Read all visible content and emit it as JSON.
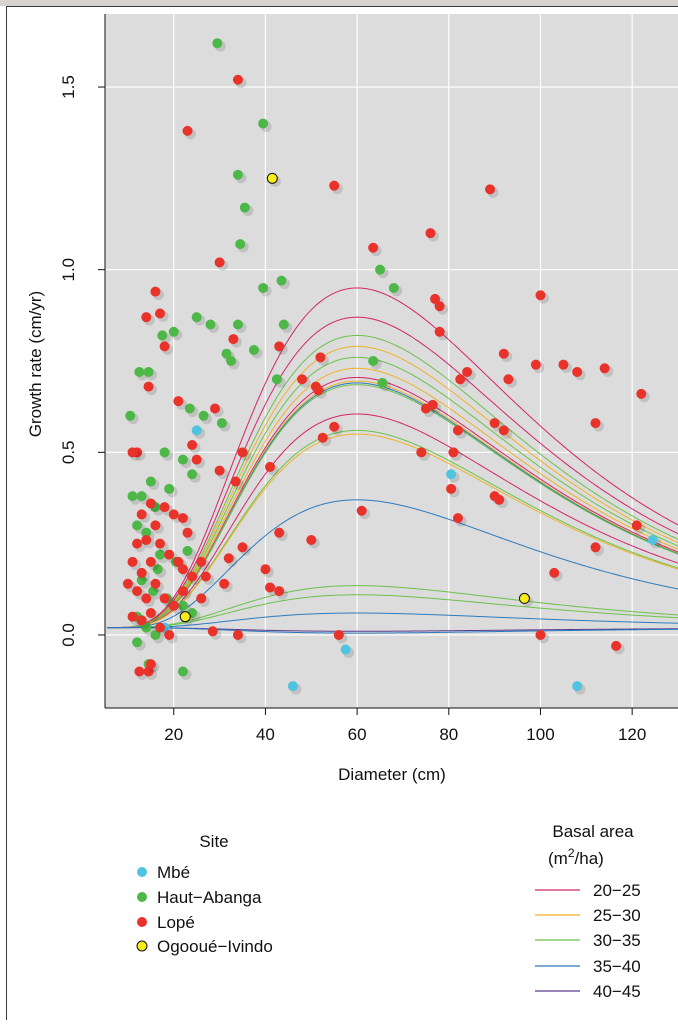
{
  "chart_data": {
    "type": "scatter",
    "xlabel": "Diameter (cm)",
    "ylabel": "Growth rate (cm/yr)",
    "xlim": [
      5,
      130
    ],
    "ylim": [
      -0.2,
      1.7
    ],
    "x_ticks": [
      20,
      40,
      60,
      80,
      100,
      120
    ],
    "y_ticks": [
      0.0,
      0.5,
      1.0,
      1.5
    ],
    "x_tick_labels": [
      "20",
      "40",
      "60",
      "80",
      "100",
      "120"
    ],
    "y_tick_labels": [
      "0.0",
      "0.5",
      "1.0",
      "1.5"
    ],
    "grid": true,
    "colors": {
      "Mbé": "#4fc3e0",
      "Haut-Abanga": "#4db848",
      "Lopé": "#e8322a",
      "Ogooué-Ivindo": "#f5ec1a",
      "20-25": "#d6246b",
      "25-30": "#f0b22a",
      "30-35": "#6cc24a",
      "35-40": "#2b7bc0",
      "40-45": "#5a3a8c",
      "panel": "#dcdcdc"
    },
    "legend_site": {
      "title": "Site",
      "entries": [
        "Mbé",
        "Haut−Abanga",
        "Lopé",
        "Ogooué−Ivindo"
      ],
      "placement": "bottom-left"
    },
    "legend_basal": {
      "title": "Basal area",
      "title_unit_prefix": "(m",
      "title_unit_sup": "2",
      "title_unit_suffix": "/ha)",
      "entries": [
        "20−25",
        "25−30",
        "30−35",
        "35−40",
        "40−45"
      ],
      "placement": "bottom-right"
    },
    "points": {
      "Mbé": [
        [
          25,
          0.56
        ],
        [
          46,
          -0.14
        ],
        [
          57.5,
          -0.04
        ],
        [
          80.5,
          0.44
        ],
        [
          108,
          -0.14
        ],
        [
          124.5,
          0.26
        ],
        [
          18,
          0.02
        ]
      ],
      "Haut-Abanga": [
        [
          29.5,
          1.62
        ],
        [
          39.5,
          1.4
        ],
        [
          34,
          1.26
        ],
        [
          35.5,
          1.17
        ],
        [
          34.5,
          1.07
        ],
        [
          43.5,
          0.97
        ],
        [
          39.5,
          0.95
        ],
        [
          65,
          1.0
        ],
        [
          68,
          0.95
        ],
        [
          25,
          0.87
        ],
        [
          28,
          0.85
        ],
        [
          34,
          0.85
        ],
        [
          44,
          0.85
        ],
        [
          20,
          0.83
        ],
        [
          17.5,
          0.82
        ],
        [
          37.5,
          0.78
        ],
        [
          31.5,
          0.77
        ],
        [
          32.5,
          0.75
        ],
        [
          12.5,
          0.72
        ],
        [
          14.5,
          0.72
        ],
        [
          42.5,
          0.7
        ],
        [
          63.5,
          0.75
        ],
        [
          65.5,
          0.69
        ],
        [
          26.5,
          0.6
        ],
        [
          30.5,
          0.58
        ],
        [
          10.5,
          0.6
        ],
        [
          18,
          0.5
        ],
        [
          22,
          0.48
        ],
        [
          24,
          0.44
        ],
        [
          15,
          0.42
        ],
        [
          19,
          0.4
        ],
        [
          11,
          0.38
        ],
        [
          13,
          0.38
        ],
        [
          16,
          0.35
        ],
        [
          12,
          0.3
        ],
        [
          14,
          0.28
        ],
        [
          17,
          0.22
        ],
        [
          20.5,
          0.2
        ],
        [
          13,
          0.15
        ],
        [
          15.5,
          0.12
        ],
        [
          18.5,
          0.1
        ],
        [
          12,
          0.05
        ],
        [
          14,
          0.02
        ],
        [
          16,
          0.0
        ],
        [
          22,
          0.08
        ],
        [
          24,
          0.06
        ],
        [
          12,
          -0.02
        ],
        [
          14.5,
          -0.08
        ],
        [
          22,
          -0.1
        ],
        [
          23.5,
          0.62
        ],
        [
          23,
          0.23
        ],
        [
          16.5,
          0.18
        ]
      ],
      "Lopé": [
        [
          34,
          1.52
        ],
        [
          23,
          1.38
        ],
        [
          55,
          1.23
        ],
        [
          76,
          1.1
        ],
        [
          89,
          1.22
        ],
        [
          63.5,
          1.06
        ],
        [
          30,
          1.02
        ],
        [
          16,
          0.94
        ],
        [
          77,
          0.92
        ],
        [
          78,
          0.9
        ],
        [
          100,
          0.93
        ],
        [
          17,
          0.88
        ],
        [
          14,
          0.87
        ],
        [
          33,
          0.81
        ],
        [
          43,
          0.79
        ],
        [
          18,
          0.79
        ],
        [
          78,
          0.83
        ],
        [
          52,
          0.76
        ],
        [
          92,
          0.77
        ],
        [
          99,
          0.74
        ],
        [
          105,
          0.74
        ],
        [
          108,
          0.72
        ],
        [
          114,
          0.73
        ],
        [
          122,
          0.66
        ],
        [
          82.5,
          0.7
        ],
        [
          84,
          0.72
        ],
        [
          93,
          0.7
        ],
        [
          48,
          0.7
        ],
        [
          51,
          0.68
        ],
        [
          51.5,
          0.67
        ],
        [
          14.5,
          0.68
        ],
        [
          29,
          0.62
        ],
        [
          21,
          0.64
        ],
        [
          75,
          0.62
        ],
        [
          76.5,
          0.63
        ],
        [
          55,
          0.57
        ],
        [
          52.5,
          0.54
        ],
        [
          90,
          0.58
        ],
        [
          92,
          0.56
        ],
        [
          112,
          0.58
        ],
        [
          74,
          0.5
        ],
        [
          81,
          0.5
        ],
        [
          82,
          0.56
        ],
        [
          80.5,
          0.4
        ],
        [
          24,
          0.52
        ],
        [
          25,
          0.48
        ],
        [
          35,
          0.5
        ],
        [
          30,
          0.45
        ],
        [
          41,
          0.46
        ],
        [
          33.5,
          0.42
        ],
        [
          12,
          0.5
        ],
        [
          11,
          0.5
        ],
        [
          15,
          0.36
        ],
        [
          18,
          0.35
        ],
        [
          20,
          0.33
        ],
        [
          22,
          0.32
        ],
        [
          23,
          0.28
        ],
        [
          13,
          0.33
        ],
        [
          16,
          0.3
        ],
        [
          14,
          0.26
        ],
        [
          12,
          0.25
        ],
        [
          11,
          0.2
        ],
        [
          15,
          0.2
        ],
        [
          17,
          0.25
        ],
        [
          19,
          0.22
        ],
        [
          21,
          0.2
        ],
        [
          22,
          0.18
        ],
        [
          24,
          0.16
        ],
        [
          26,
          0.2
        ],
        [
          27,
          0.16
        ],
        [
          32,
          0.21
        ],
        [
          35,
          0.24
        ],
        [
          43,
          0.28
        ],
        [
          50,
          0.26
        ],
        [
          61,
          0.34
        ],
        [
          82,
          0.32
        ],
        [
          90,
          0.38
        ],
        [
          91,
          0.37
        ],
        [
          121,
          0.3
        ],
        [
          112,
          0.24
        ],
        [
          103,
          0.17
        ],
        [
          10,
          0.14
        ],
        [
          12,
          0.12
        ],
        [
          14,
          0.1
        ],
        [
          16,
          0.14
        ],
        [
          18,
          0.1
        ],
        [
          20,
          0.08
        ],
        [
          22,
          0.12
        ],
        [
          26,
          0.1
        ],
        [
          31,
          0.14
        ],
        [
          40,
          0.18
        ],
        [
          41,
          0.13
        ],
        [
          43,
          0.12
        ],
        [
          11,
          0.05
        ],
        [
          13,
          0.04
        ],
        [
          15,
          0.06
        ],
        [
          17,
          0.02
        ],
        [
          19,
          0.0
        ],
        [
          28.5,
          0.01
        ],
        [
          34,
          0.0
        ],
        [
          56,
          0.0
        ],
        [
          100,
          0.0
        ],
        [
          116.5,
          -0.03
        ],
        [
          12.5,
          -0.1
        ],
        [
          14.5,
          -0.1
        ],
        [
          15,
          -0.08
        ],
        [
          13,
          0.17
        ]
      ],
      "Ogooué-Ivindo": [
        [
          41.5,
          1.25
        ],
        [
          96.5,
          0.1
        ],
        [
          22.5,
          0.05
        ]
      ]
    },
    "curves": [
      {
        "group": "20-25",
        "peak": 0.95
      },
      {
        "group": "20-25",
        "peak": 0.87
      },
      {
        "group": "30-35",
        "peak": 0.82
      },
      {
        "group": "25-30",
        "peak": 0.79
      },
      {
        "group": "30-35",
        "peak": 0.76
      },
      {
        "group": "25-30",
        "peak": 0.73
      },
      {
        "group": "20-25",
        "peak": 0.705
      },
      {
        "group": "25-30",
        "peak": 0.695
      },
      {
        "group": "35-40",
        "peak": 0.69
      },
      {
        "group": "30-35",
        "peak": 0.685
      },
      {
        "group": "20-25",
        "peak": 0.605
      },
      {
        "group": "30-35",
        "peak": 0.56
      },
      {
        "group": "25-30",
        "peak": 0.55
      },
      {
        "group": "35-40",
        "peak": 0.37
      },
      {
        "group": "30-35",
        "peak": 0.135
      },
      {
        "group": "30-35",
        "peak": 0.11
      },
      {
        "group": "35-40",
        "peak": 0.06
      },
      {
        "group": "40-45",
        "peak": 0.01
      },
      {
        "group": "35-40",
        "peak": 0.005
      }
    ]
  }
}
